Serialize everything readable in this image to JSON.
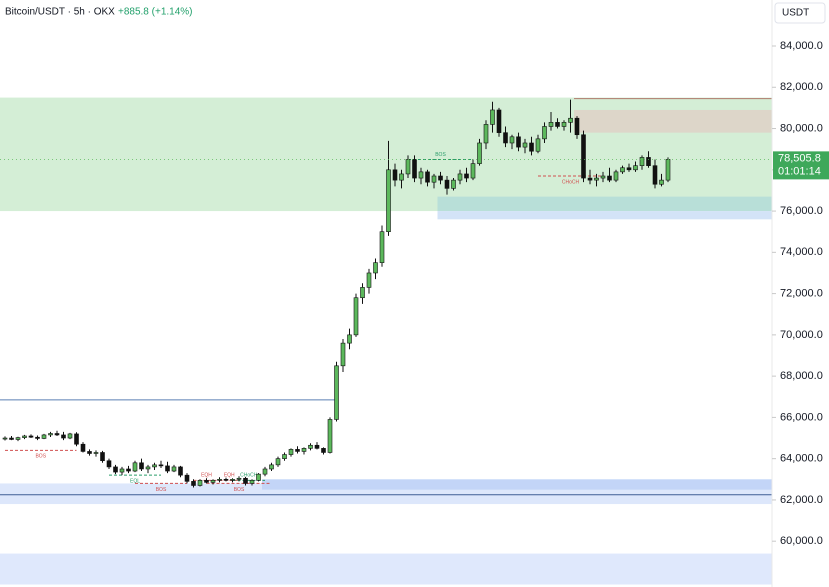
{
  "chart_data": {
    "type": "candlestick",
    "title": "Bitcoin/USDT · 5h · OKX",
    "change": "+885.8 (+1.14%)",
    "currency": "USDT",
    "last_price": {
      "value": 78505.8,
      "label": "78,505.8"
    },
    "countdown": "01:01:14",
    "up_color": "#5cb85c",
    "down_color": "#111111",
    "ylim": [
      57780,
      86230
    ],
    "yticks": [
      {
        "value": 60000,
        "label": "60,000.0"
      },
      {
        "value": 62000,
        "label": "62,000.0"
      },
      {
        "value": 64000,
        "label": "64,000.0"
      },
      {
        "value": 66000,
        "label": "66,000.0"
      },
      {
        "value": 68000,
        "label": "68,000.0"
      },
      {
        "value": 70000,
        "label": "70,000.0"
      },
      {
        "value": 72000,
        "label": "72,000.0"
      },
      {
        "value": 74000,
        "label": "74,000.0"
      },
      {
        "value": 76000,
        "label": "76,000.0"
      },
      {
        "value": 78000,
        "label": "78,000.0"
      },
      {
        "value": 80000,
        "label": "80,000.0"
      },
      {
        "value": 82000,
        "label": "82,000.0"
      },
      {
        "value": 84000,
        "label": "84,000.0"
      }
    ],
    "candles": [
      [
        64950,
        65080,
        64880,
        65000
      ],
      [
        65000,
        65100,
        64900,
        64930
      ],
      [
        64930,
        65060,
        64850,
        65020
      ],
      [
        65020,
        65150,
        64950,
        65100
      ],
      [
        65100,
        65180,
        65000,
        65040
      ],
      [
        65040,
        65120,
        64900,
        64980
      ],
      [
        64980,
        65200,
        64950,
        65150
      ],
      [
        65150,
        65300,
        65050,
        65220
      ],
      [
        65220,
        65350,
        65100,
        65150
      ],
      [
        65150,
        65300,
        64900,
        65000
      ],
      [
        65000,
        65250,
        64950,
        65200
      ],
      [
        65200,
        65280,
        64600,
        64700
      ],
      [
        64700,
        64800,
        64300,
        64350
      ],
      [
        64350,
        64450,
        64150,
        64250
      ],
      [
        64250,
        64400,
        64100,
        64300
      ],
      [
        64300,
        64380,
        63800,
        63900
      ],
      [
        63900,
        64000,
        63500,
        63600
      ],
      [
        63600,
        63700,
        63250,
        63350
      ],
      [
        63350,
        63600,
        63200,
        63500
      ],
      [
        63500,
        63650,
        63300,
        63400
      ],
      [
        63400,
        63900,
        63350,
        63800
      ],
      [
        63800,
        64000,
        63400,
        63500
      ],
      [
        63500,
        63700,
        63300,
        63600
      ],
      [
        63600,
        63800,
        63450,
        63700
      ],
      [
        63700,
        63900,
        63550,
        63650
      ],
      [
        63650,
        63850,
        63300,
        63400
      ],
      [
        63400,
        63700,
        63350,
        63600
      ],
      [
        63600,
        63650,
        63100,
        63200
      ],
      [
        63200,
        63300,
        62800,
        62900
      ],
      [
        62900,
        63000,
        62600,
        62700
      ],
      [
        62700,
        63000,
        62650,
        62950
      ],
      [
        62950,
        63050,
        62800,
        62850
      ],
      [
        62850,
        63000,
        62750,
        62950
      ],
      [
        62950,
        63100,
        62850,
        63000
      ],
      [
        63000,
        63080,
        62900,
        62950
      ],
      [
        62950,
        63050,
        62850,
        63000
      ],
      [
        63000,
        63150,
        62900,
        63050
      ],
      [
        63050,
        63120,
        62700,
        62800
      ],
      [
        62800,
        63000,
        62700,
        62950
      ],
      [
        62950,
        63300,
        62900,
        63250
      ],
      [
        63250,
        63600,
        63150,
        63500
      ],
      [
        63500,
        63800,
        63400,
        63700
      ],
      [
        63700,
        64100,
        63600,
        64000
      ],
      [
        64000,
        64300,
        63900,
        64200
      ],
      [
        64200,
        64500,
        64100,
        64450
      ],
      [
        64450,
        64600,
        64250,
        64350
      ],
      [
        64350,
        64550,
        64200,
        64500
      ],
      [
        64500,
        64750,
        64400,
        64650
      ],
      [
        64650,
        64800,
        64450,
        64500
      ],
      [
        64500,
        64550,
        64200,
        64300
      ],
      [
        64300,
        66000,
        64250,
        65900
      ],
      [
        65900,
        68700,
        65800,
        68500
      ],
      [
        68500,
        69800,
        68200,
        69600
      ],
      [
        69600,
        70300,
        69300,
        70000
      ],
      [
        70000,
        72000,
        69900,
        71800
      ],
      [
        71800,
        72500,
        71500,
        72300
      ],
      [
        72300,
        73200,
        72000,
        73000
      ],
      [
        73000,
        73700,
        72700,
        73500
      ],
      [
        73500,
        75300,
        73300,
        75000
      ],
      [
        75000,
        79400,
        74800,
        78000
      ],
      [
        78000,
        78300,
        77200,
        77500
      ],
      [
        77500,
        78000,
        77100,
        77800
      ],
      [
        77800,
        78700,
        77600,
        78500
      ],
      [
        78500,
        78700,
        77400,
        77600
      ],
      [
        77600,
        78100,
        77300,
        77900
      ],
      [
        77900,
        78000,
        77200,
        77400
      ],
      [
        77400,
        77800,
        77100,
        77700
      ],
      [
        77700,
        77900,
        77300,
        77500
      ],
      [
        77500,
        77700,
        76800,
        77100
      ],
      [
        77100,
        77600,
        77000,
        77500
      ],
      [
        77500,
        78000,
        77300,
        77800
      ],
      [
        77800,
        78100,
        77400,
        77600
      ],
      [
        77600,
        78500,
        77500,
        78300
      ],
      [
        78300,
        79500,
        78200,
        79300
      ],
      [
        79300,
        80400,
        79000,
        80200
      ],
      [
        80200,
        81300,
        79800,
        80900
      ],
      [
        80900,
        81000,
        79600,
        79800
      ],
      [
        79800,
        80100,
        79100,
        79300
      ],
      [
        79300,
        79700,
        79000,
        79600
      ],
      [
        79600,
        79800,
        78900,
        79100
      ],
      [
        79100,
        79500,
        78800,
        79300
      ],
      [
        79300,
        79600,
        78700,
        78900
      ],
      [
        78900,
        79700,
        78800,
        79500
      ],
      [
        79500,
        80300,
        79300,
        80100
      ],
      [
        80100,
        80800,
        79900,
        80300
      ],
      [
        80300,
        80500,
        80000,
        80100
      ],
      [
        80100,
        80400,
        79900,
        80300
      ],
      [
        80300,
        81400,
        79800,
        80500
      ],
      [
        80500,
        80600,
        79500,
        79700
      ],
      [
        79700,
        79900,
        77400,
        77600
      ],
      [
        77600,
        78000,
        77300,
        77500
      ],
      [
        77500,
        77800,
        77200,
        77600
      ],
      [
        77600,
        77900,
        77400,
        77700
      ],
      [
        77700,
        78100,
        77400,
        77500
      ],
      [
        77500,
        78000,
        77400,
        77900
      ],
      [
        77900,
        78200,
        77800,
        78100
      ],
      [
        78100,
        78300,
        77900,
        78000
      ],
      [
        78000,
        78400,
        77900,
        78200
      ],
      [
        78200,
        78700,
        78000,
        78600
      ],
      [
        78600,
        78900,
        78100,
        78200
      ],
      [
        78200,
        78500,
        77100,
        77300
      ],
      [
        77300,
        77800,
        77200,
        77500
      ],
      [
        77500,
        78600,
        77400,
        78505.8
      ]
    ],
    "zones": [
      {
        "from": 76000,
        "to": 81500,
        "start": 0,
        "color": "#d4eed6"
      },
      {
        "from": 79800,
        "to": 80900,
        "start": 88,
        "color": "#ddd6c9"
      },
      {
        "from": 76000,
        "to": 76700,
        "start": 67,
        "color": "#b8dfd8"
      },
      {
        "from": 75600,
        "to": 76000,
        "start": 67,
        "color": "#d3e3f7"
      },
      {
        "from": 61800,
        "to": 62800,
        "start": 0,
        "color": "#dde7fb"
      },
      {
        "from": 62500,
        "to": 63000,
        "start": 40,
        "color": "#c3d5f7"
      },
      {
        "from": 57900,
        "to": 59400,
        "start": 0,
        "color": "#dfe8fc"
      }
    ],
    "levels": [
      {
        "price": 66850,
        "start": 0,
        "end": 51,
        "color": "#5a7fb3"
      },
      {
        "price": 62250,
        "start": 0,
        "end": 118,
        "color": "#3f5f95"
      },
      {
        "price": 81450,
        "start": 88,
        "end": 118,
        "color": "#b07a6c"
      }
    ],
    "annotations": [
      {
        "text": "BOS",
        "level": 64400,
        "start": 0,
        "end": 11,
        "color": "#d05050",
        "side": "below"
      },
      {
        "text": "EQL",
        "level": 63200,
        "start": 16,
        "end": 24,
        "color": "#2a9d6a",
        "side": "below"
      },
      {
        "text": "BOS",
        "level": 62800,
        "start": 20,
        "end": 28,
        "color": "#d05050",
        "side": "below"
      },
      {
        "text": "EQH",
        "level": 62950,
        "start": 29,
        "end": 33,
        "color": "#d05050",
        "side": "above"
      },
      {
        "text": "EQH",
        "level": 62950,
        "start": 33,
        "end": 36,
        "color": "#d05050",
        "side": "above"
      },
      {
        "text": "CHoCH",
        "level": 62950,
        "start": 35,
        "end": 40,
        "color": "#2a9d6a",
        "side": "above"
      },
      {
        "text": "BOS",
        "level": 62800,
        "start": 31,
        "end": 41,
        "color": "#d05050",
        "side": "below"
      },
      {
        "text": "BOS",
        "level": 78500,
        "start": 62,
        "end": 72,
        "color": "#2a9d6a",
        "side": "above"
      },
      {
        "text": "CHoCH",
        "level": 77700,
        "start": 82,
        "end": 92,
        "color": "#d05050",
        "side": "below"
      }
    ]
  }
}
